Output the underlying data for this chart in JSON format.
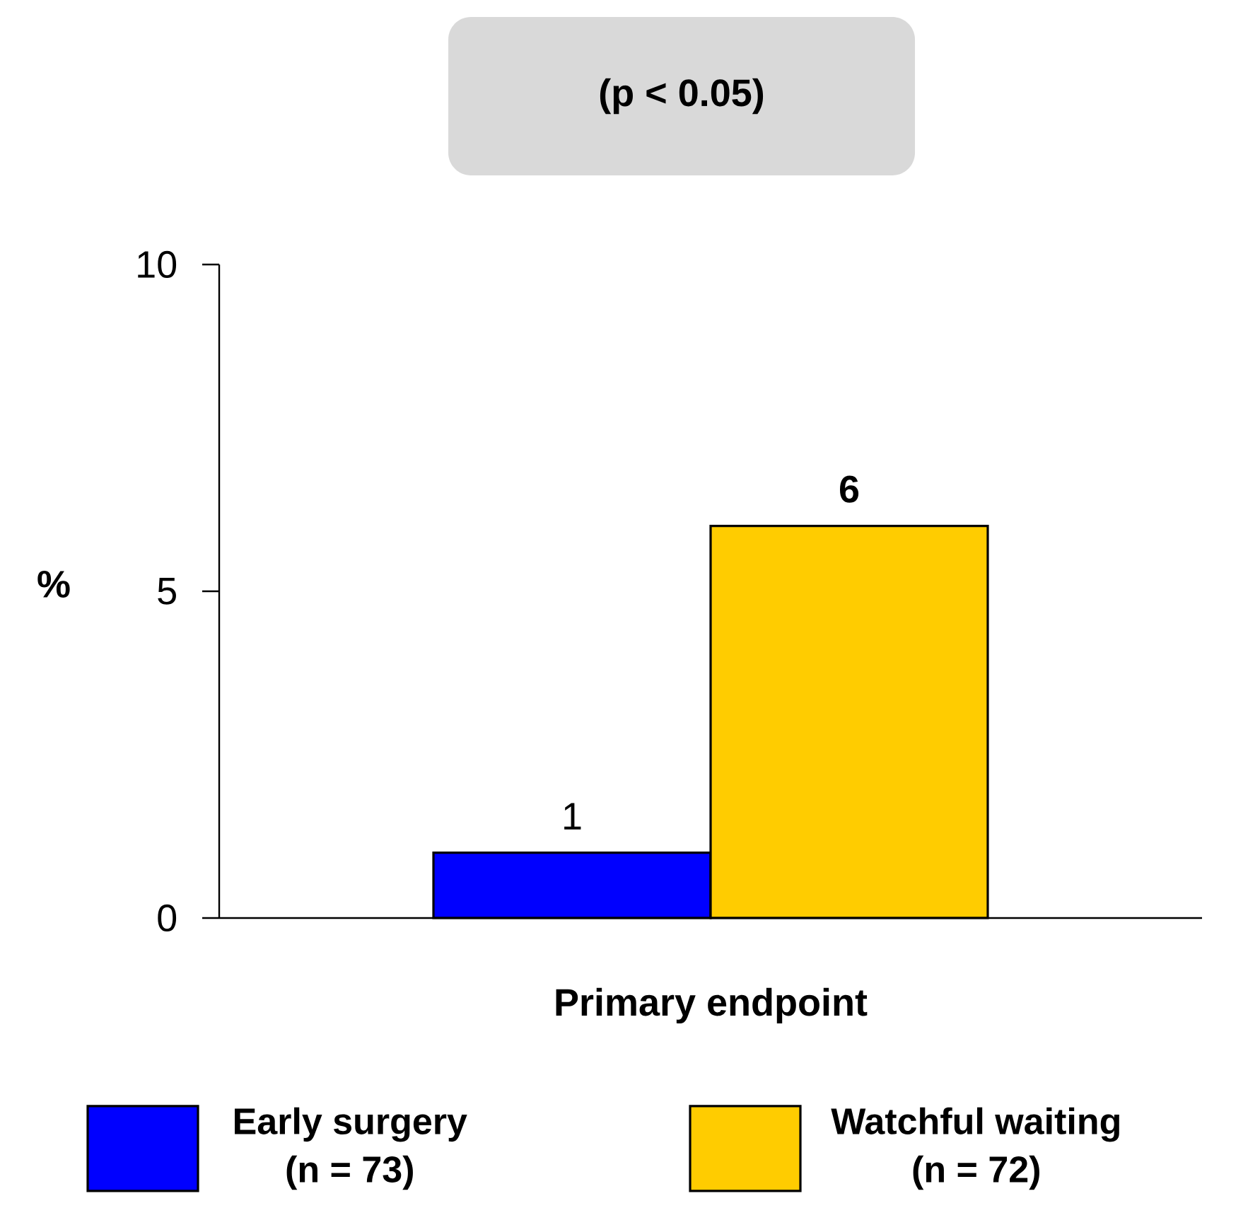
{
  "chart_data": {
    "type": "bar",
    "title": "(p < 0.05)",
    "ylabel": "%",
    "categories": [
      "Primary endpoint"
    ],
    "series": [
      {
        "name": "Early surgery (n = 73)",
        "color": "#0000ff",
        "values": [
          1
        ],
        "value_labels": [
          "1"
        ]
      },
      {
        "name": "Watchful waiting (n = 72)",
        "color": "#ffcc00",
        "values": [
          6
        ],
        "value_labels": [
          "6"
        ]
      }
    ],
    "ylim": [
      0,
      10
    ],
    "yticks": [
      0,
      5,
      10
    ],
    "grid": false,
    "legend": "bottom"
  }
}
